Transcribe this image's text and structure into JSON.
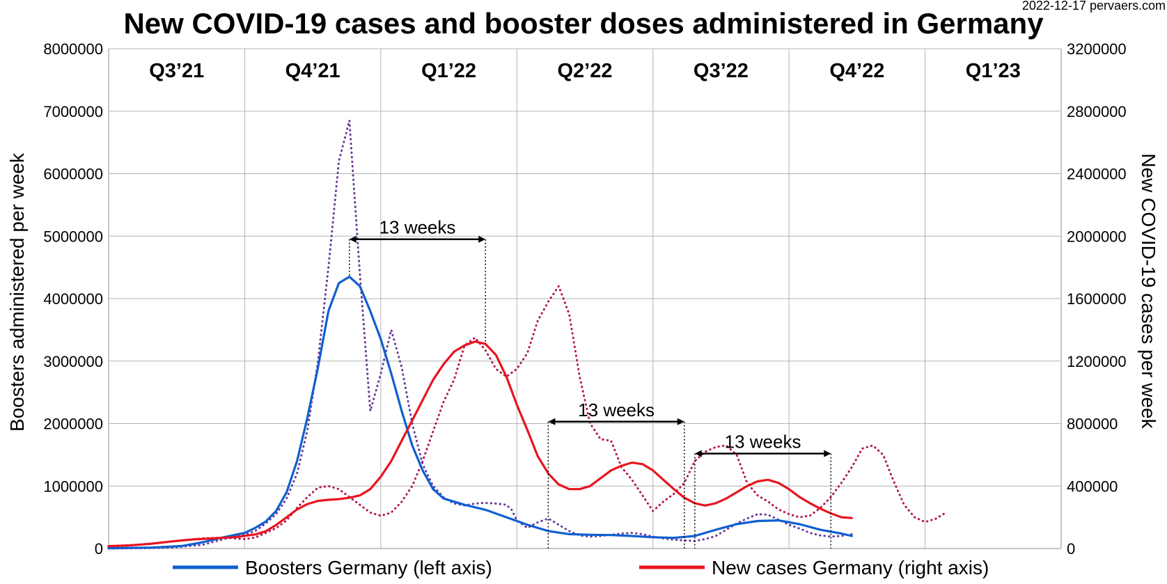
{
  "chart_data": {
    "type": "line",
    "title": "New COVID-19 cases and booster doses administered in Germany",
    "source_label": "2022-12-17 pervaers.com",
    "ylabel_left": "Boosters administered per week",
    "ylabel_right": "New COVID-19 cases per week",
    "ylim_left": [
      0,
      8000000
    ],
    "ylim_right": [
      0,
      3200000
    ],
    "yticks_left": [
      "0",
      "1000000",
      "2000000",
      "3000000",
      "4000000",
      "5000000",
      "6000000",
      "7000000",
      "8000000"
    ],
    "yticks_right": [
      "0",
      "400000",
      "800000",
      "1200000",
      "1600000",
      "2000000",
      "2400000",
      "2800000",
      "3200000"
    ],
    "quarters": [
      "Q3’21",
      "Q4’21",
      "Q1’22",
      "Q2’22",
      "Q3’22",
      "Q4’22",
      "Q1’23"
    ],
    "weeks_total": 91,
    "grid": true,
    "legend_position": "bottom",
    "series": [
      {
        "name": "Boosters Germany (left axis)",
        "axis": "left",
        "color": "#0f5fd0",
        "style": "solid",
        "points": [
          [
            0,
            5000
          ],
          [
            4,
            15000
          ],
          [
            7,
            40000
          ],
          [
            9,
            100000
          ],
          [
            11,
            180000
          ],
          [
            13,
            250000
          ],
          [
            14,
            330000
          ],
          [
            15,
            430000
          ],
          [
            16,
            600000
          ],
          [
            17,
            900000
          ],
          [
            18,
            1400000
          ],
          [
            19,
            2100000
          ],
          [
            20,
            2900000
          ],
          [
            21,
            3800000
          ],
          [
            22,
            4250000
          ],
          [
            23,
            4350000
          ],
          [
            24,
            4200000
          ],
          [
            25,
            3800000
          ],
          [
            26,
            3350000
          ],
          [
            27,
            2800000
          ],
          [
            28,
            2200000
          ],
          [
            29,
            1650000
          ],
          [
            30,
            1250000
          ],
          [
            31,
            950000
          ],
          [
            32,
            800000
          ],
          [
            33,
            750000
          ],
          [
            34,
            700000
          ],
          [
            36,
            620000
          ],
          [
            38,
            500000
          ],
          [
            40,
            380000
          ],
          [
            42,
            280000
          ],
          [
            44,
            230000
          ],
          [
            46,
            220000
          ],
          [
            48,
            215000
          ],
          [
            50,
            200000
          ],
          [
            52,
            180000
          ],
          [
            54,
            170000
          ],
          [
            56,
            200000
          ],
          [
            58,
            300000
          ],
          [
            60,
            390000
          ],
          [
            62,
            440000
          ],
          [
            64,
            450000
          ],
          [
            66,
            390000
          ],
          [
            68,
            300000
          ],
          [
            70,
            240000
          ],
          [
            71,
            200000
          ]
        ]
      },
      {
        "name": "New cases Germany (right axis)",
        "axis": "right",
        "color": "#e8141e",
        "style": "solid",
        "points": [
          [
            0,
            15000
          ],
          [
            2,
            20000
          ],
          [
            4,
            30000
          ],
          [
            6,
            45000
          ],
          [
            8,
            58000
          ],
          [
            10,
            65000
          ],
          [
            12,
            72000
          ],
          [
            14,
            90000
          ],
          [
            15,
            110000
          ],
          [
            16,
            150000
          ],
          [
            17,
            200000
          ],
          [
            18,
            250000
          ],
          [
            19,
            285000
          ],
          [
            20,
            305000
          ],
          [
            21,
            312000
          ],
          [
            22,
            316000
          ],
          [
            23,
            325000
          ],
          [
            24,
            340000
          ],
          [
            25,
            380000
          ],
          [
            26,
            460000
          ],
          [
            27,
            560000
          ],
          [
            28,
            690000
          ],
          [
            29,
            820000
          ],
          [
            30,
            950000
          ],
          [
            31,
            1080000
          ],
          [
            32,
            1180000
          ],
          [
            33,
            1260000
          ],
          [
            34,
            1300000
          ],
          [
            35,
            1325000
          ],
          [
            36,
            1310000
          ],
          [
            37,
            1240000
          ],
          [
            38,
            1100000
          ],
          [
            39,
            920000
          ],
          [
            40,
            760000
          ],
          [
            41,
            590000
          ],
          [
            42,
            480000
          ],
          [
            43,
            410000
          ],
          [
            44,
            380000
          ],
          [
            45,
            380000
          ],
          [
            46,
            400000
          ],
          [
            47,
            450000
          ],
          [
            48,
            500000
          ],
          [
            49,
            530000
          ],
          [
            50,
            550000
          ],
          [
            51,
            540000
          ],
          [
            52,
            500000
          ],
          [
            53,
            440000
          ],
          [
            54,
            380000
          ],
          [
            55,
            325000
          ],
          [
            56,
            290000
          ],
          [
            57,
            275000
          ],
          [
            58,
            290000
          ],
          [
            59,
            320000
          ],
          [
            60,
            360000
          ],
          [
            61,
            400000
          ],
          [
            62,
            430000
          ],
          [
            63,
            440000
          ],
          [
            64,
            420000
          ],
          [
            65,
            380000
          ],
          [
            66,
            330000
          ],
          [
            67,
            290000
          ],
          [
            68,
            255000
          ],
          [
            69,
            225000
          ],
          [
            70,
            200000
          ],
          [
            71,
            195000
          ]
        ]
      },
      {
        "name": "",
        "axis": "left",
        "color": "#6a3a9a",
        "style": "dotted",
        "points": [
          [
            0,
            0
          ],
          [
            3,
            5000
          ],
          [
            6,
            15000
          ],
          [
            9,
            60000
          ],
          [
            11,
            150000
          ],
          [
            13,
            220000
          ],
          [
            14,
            280000
          ],
          [
            15,
            400000
          ],
          [
            16,
            550000
          ],
          [
            17,
            800000
          ],
          [
            18,
            1200000
          ],
          [
            19,
            1900000
          ],
          [
            20,
            3000000
          ],
          [
            21,
            4500000
          ],
          [
            22,
            6200000
          ],
          [
            23,
            6850000
          ],
          [
            24,
            4400000
          ],
          [
            25,
            2200000
          ],
          [
            26,
            2800000
          ],
          [
            27,
            3500000
          ],
          [
            28,
            2900000
          ],
          [
            29,
            2000000
          ],
          [
            30,
            1350000
          ],
          [
            31,
            1000000
          ],
          [
            32,
            820000
          ],
          [
            33,
            720000
          ],
          [
            34,
            690000
          ],
          [
            35,
            720000
          ],
          [
            36,
            730000
          ],
          [
            37,
            720000
          ],
          [
            38,
            700000
          ],
          [
            38.5,
            620000
          ],
          [
            39,
            450000
          ],
          [
            40,
            330000
          ],
          [
            41,
            420000
          ],
          [
            42,
            480000
          ],
          [
            43,
            380000
          ],
          [
            44,
            280000
          ],
          [
            45,
            210000
          ],
          [
            46,
            190000
          ],
          [
            47,
            200000
          ],
          [
            48,
            220000
          ],
          [
            49,
            240000
          ],
          [
            50,
            250000
          ],
          [
            51,
            230000
          ],
          [
            52,
            190000
          ],
          [
            53,
            160000
          ],
          [
            54,
            140000
          ],
          [
            55,
            130000
          ],
          [
            56,
            120000
          ],
          [
            57,
            150000
          ],
          [
            58,
            200000
          ],
          [
            59,
            300000
          ],
          [
            60,
            400000
          ],
          [
            61,
            480000
          ],
          [
            62,
            550000
          ],
          [
            63,
            540000
          ],
          [
            64,
            460000
          ],
          [
            65,
            380000
          ],
          [
            66,
            320000
          ],
          [
            67,
            250000
          ],
          [
            68,
            210000
          ],
          [
            69,
            190000
          ],
          [
            70,
            200000
          ],
          [
            71,
            230000
          ]
        ]
      },
      {
        "name": "",
        "axis": "right",
        "color": "#b5154e",
        "style": "dotted",
        "points": [
          [
            0,
            10000
          ],
          [
            3,
            25000
          ],
          [
            6,
            45000
          ],
          [
            9,
            65000
          ],
          [
            11,
            70000
          ],
          [
            13,
            60000
          ],
          [
            14,
            70000
          ],
          [
            15,
            100000
          ],
          [
            16,
            130000
          ],
          [
            17,
            180000
          ],
          [
            18,
            260000
          ],
          [
            19,
            330000
          ],
          [
            20,
            390000
          ],
          [
            21,
            400000
          ],
          [
            22,
            380000
          ],
          [
            23,
            330000
          ],
          [
            24,
            280000
          ],
          [
            25,
            230000
          ],
          [
            26,
            210000
          ],
          [
            27,
            230000
          ],
          [
            28,
            300000
          ],
          [
            29,
            400000
          ],
          [
            30,
            560000
          ],
          [
            31,
            750000
          ],
          [
            32,
            940000
          ],
          [
            33,
            1080000
          ],
          [
            34,
            1300000
          ],
          [
            35,
            1350000
          ],
          [
            36,
            1270000
          ],
          [
            37,
            1150000
          ],
          [
            38,
            1100000
          ],
          [
            39,
            1150000
          ],
          [
            40,
            1250000
          ],
          [
            41,
            1460000
          ],
          [
            42,
            1580000
          ],
          [
            43,
            1680000
          ],
          [
            44,
            1500000
          ],
          [
            45,
            1100000
          ],
          [
            46,
            800000
          ],
          [
            47,
            700000
          ],
          [
            48,
            690000
          ],
          [
            49,
            520000
          ],
          [
            50,
            440000
          ],
          [
            51,
            340000
          ],
          [
            52,
            240000
          ],
          [
            53,
            300000
          ],
          [
            54,
            350000
          ],
          [
            55,
            420000
          ],
          [
            56,
            560000
          ],
          [
            57,
            620000
          ],
          [
            58,
            650000
          ],
          [
            59,
            660000
          ],
          [
            60,
            600000
          ],
          [
            61,
            420000
          ],
          [
            62,
            340000
          ],
          [
            63,
            300000
          ],
          [
            64,
            250000
          ],
          [
            65,
            220000
          ],
          [
            66,
            200000
          ],
          [
            67,
            210000
          ],
          [
            68,
            260000
          ],
          [
            69,
            330000
          ],
          [
            70,
            420000
          ],
          [
            71,
            520000
          ],
          [
            72,
            640000
          ],
          [
            73,
            660000
          ],
          [
            74,
            600000
          ],
          [
            75,
            430000
          ],
          [
            76,
            280000
          ],
          [
            77,
            200000
          ],
          [
            78,
            170000
          ],
          [
            79,
            190000
          ],
          [
            80,
            230000
          ]
        ]
      }
    ],
    "annotations": [
      {
        "label": "13 weeks",
        "x_start": 23,
        "x_end": 36,
        "y_left": 4950000
      },
      {
        "label": "13 weeks",
        "x_start": 42,
        "x_end": 55,
        "y_left": 2030000
      },
      {
        "label": "13 weeks",
        "x_start": 56,
        "x_end": 69,
        "y_left": 1520000
      }
    ]
  }
}
